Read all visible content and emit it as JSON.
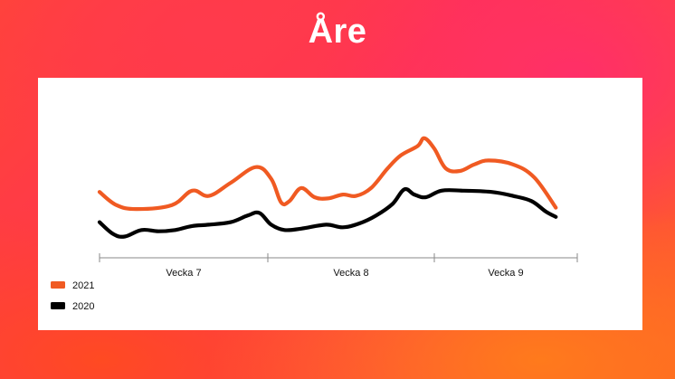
{
  "page": {
    "title": "Åre"
  },
  "chart_data": {
    "type": "line",
    "title": "Åre",
    "x_unit": "week",
    "x_range": [
      0,
      3
    ],
    "ylim": [
      0,
      100
    ],
    "categories": [
      "Vecka 7",
      "Vecka 8",
      "Vecka 9"
    ],
    "grid": false,
    "legend_position": "bottom-left",
    "series": [
      {
        "name": "2021",
        "color": "#f05a22",
        "values": [
          [
            0.0,
            44
          ],
          [
            0.1,
            34
          ],
          [
            0.22,
            31
          ],
          [
            0.43,
            34
          ],
          [
            0.55,
            45
          ],
          [
            0.65,
            41
          ],
          [
            0.78,
            51
          ],
          [
            0.93,
            63
          ],
          [
            1.02,
            54
          ],
          [
            1.08,
            36
          ],
          [
            1.13,
            37
          ],
          [
            1.2,
            47
          ],
          [
            1.28,
            40
          ],
          [
            1.36,
            39
          ],
          [
            1.45,
            42
          ],
          [
            1.53,
            41
          ],
          [
            1.62,
            47
          ],
          [
            1.72,
            62
          ],
          [
            1.8,
            72
          ],
          [
            1.9,
            79
          ],
          [
            1.94,
            85
          ],
          [
            2.0,
            77
          ],
          [
            2.08,
            62
          ],
          [
            2.18,
            60
          ],
          [
            2.28,
            65
          ],
          [
            2.38,
            68
          ],
          [
            2.55,
            65
          ],
          [
            2.7,
            55
          ],
          [
            2.85,
            32
          ]
        ]
      },
      {
        "name": "2020",
        "color": "#000000",
        "values": [
          [
            0.0,
            21
          ],
          [
            0.08,
            12
          ],
          [
            0.15,
            10
          ],
          [
            0.25,
            15
          ],
          [
            0.35,
            14
          ],
          [
            0.45,
            15
          ],
          [
            0.55,
            18
          ],
          [
            0.65,
            19
          ],
          [
            0.78,
            21
          ],
          [
            0.88,
            26
          ],
          [
            0.95,
            28
          ],
          [
            1.02,
            19
          ],
          [
            1.1,
            15
          ],
          [
            1.2,
            16
          ],
          [
            1.35,
            19
          ],
          [
            1.45,
            17
          ],
          [
            1.55,
            20
          ],
          [
            1.65,
            26
          ],
          [
            1.75,
            35
          ],
          [
            1.82,
            46
          ],
          [
            1.88,
            42
          ],
          [
            1.95,
            40
          ],
          [
            2.05,
            45
          ],
          [
            2.2,
            45
          ],
          [
            2.4,
            44
          ],
          [
            2.55,
            41
          ],
          [
            2.68,
            37
          ],
          [
            2.78,
            29
          ],
          [
            2.85,
            25
          ]
        ]
      }
    ]
  }
}
